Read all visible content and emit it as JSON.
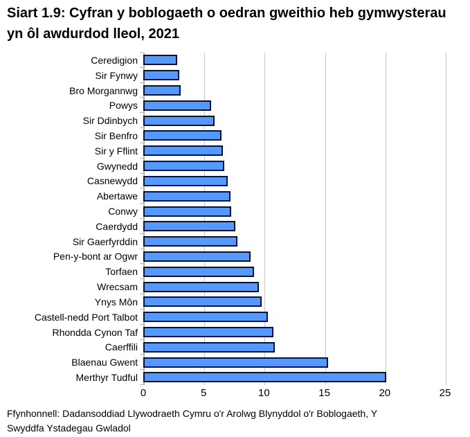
{
  "colors": {
    "bar_fill": "#5599ff",
    "bar_border": "#041233",
    "gridline": "#c6c6c6",
    "axis": "#b3b3b3",
    "text": "#000000"
  },
  "footer": {
    "source": "Ffynhonnell: Dadansoddiad Llywodraeth Cymru o'r Arolwg Blynyddol o'r Boblogaeth, Y Swyddfa Ystadegau Gwladol"
  },
  "chart_data": {
    "type": "bar",
    "orientation": "horizontal",
    "title": "Siart 1.9: Cyfran y boblogaeth o oedran gweithio heb gymwysterau yn ôl awdurdod lleol, 2021",
    "categories": [
      "Ceredigion",
      "Sir Fynwy",
      "Bro Morgannwg",
      "Powys",
      "Sir Ddinbych",
      "Sir Benfro",
      "Sir y Fflint",
      "Gwynedd",
      "Casnewydd",
      "Abertawe",
      "Conwy",
      "Caerdydd",
      "Sir Gaerfyrddin",
      "Pen-y-bont ar Ogwr",
      "Torfaen",
      "Wrecsam",
      "Ynys Môn",
      "Castell-nedd Port Talbot",
      "Rhondda Cynon Taf",
      "Caerffili",
      "Blaenau Gwent",
      "Merthyr Tudful"
    ],
    "values": [
      2.8,
      3.0,
      3.1,
      5.6,
      5.9,
      6.5,
      6.6,
      6.7,
      7.0,
      7.2,
      7.3,
      7.6,
      7.8,
      8.9,
      9.2,
      9.6,
      9.8,
      10.3,
      10.8,
      10.9,
      15.3,
      20.1
    ],
    "xlabel": "",
    "ylabel": "",
    "xlim": [
      0,
      25
    ],
    "xticks": [
      0,
      5,
      10,
      15,
      20,
      25
    ],
    "grid": "vertical",
    "legend": "none"
  }
}
